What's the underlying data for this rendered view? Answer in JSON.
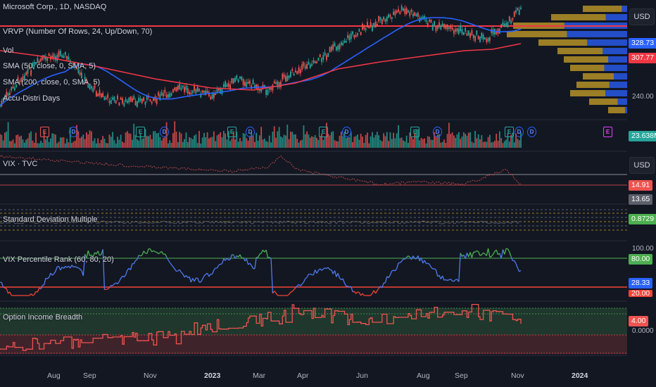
{
  "header": {
    "symbol": "Microsoft Corp., 1D, NASDAQ"
  },
  "indicators": {
    "vrvp": "VRVP (Number Of Rows, 24, Up/Down, 70)",
    "vol": "Vol",
    "sma50": "SMA (50, close, 0, SMA, 5)",
    "sma200": "SMA (200, close, 0, SMA, 5)",
    "accu": "Accu-Distri Days",
    "vix": "VIX · TVC",
    "stddev": "Standard Deviation Multiple",
    "vixrank": "VIX Percentile Rank (60, 80, 20)",
    "optbreadth": "Option Income Breadth"
  },
  "price_axis": {
    "currency_label": "USD",
    "ticks": [
      "240.00"
    ],
    "badges": {
      "sma50": "328.73",
      "last": "307.77",
      "volume": "23.638M",
      "vix_currency": "USD",
      "vix_a": "14.91",
      "vix_b": "13.65",
      "stddev": "0.8729",
      "rank_upper": "80.00",
      "rank_value": "28.33",
      "rank_lower": "20.00",
      "rank_top": "100.00",
      "breadth": "4.00",
      "breadth_zero": "0.0000"
    }
  },
  "time_axis": {
    "labels": [
      {
        "text": "Aug",
        "bold": false
      },
      {
        "text": "Sep",
        "bold": false
      },
      {
        "text": "Nov",
        "bold": false
      },
      {
        "text": "2023",
        "bold": true
      },
      {
        "text": "Mar",
        "bold": false
      },
      {
        "text": "Apr",
        "bold": false
      },
      {
        "text": "Jun",
        "bold": false
      },
      {
        "text": "Aug",
        "bold": false
      },
      {
        "text": "Sep",
        "bold": false
      },
      {
        "text": "Nov",
        "bold": false
      },
      {
        "text": "2024",
        "bold": true
      }
    ]
  },
  "events": {
    "earnings": "E",
    "dividend": "D"
  },
  "colors": {
    "background": "#131722",
    "up": "#26a69a",
    "down": "#ef5350",
    "sma50": "#2962ff",
    "sma200": "#f23645",
    "vrvp_up": "#c9a227",
    "vrvp_down": "#2962ff",
    "vix_rank_line": "#4f7bf0",
    "rank_high": "#4caf50",
    "rank_low": "#f44336"
  }
}
